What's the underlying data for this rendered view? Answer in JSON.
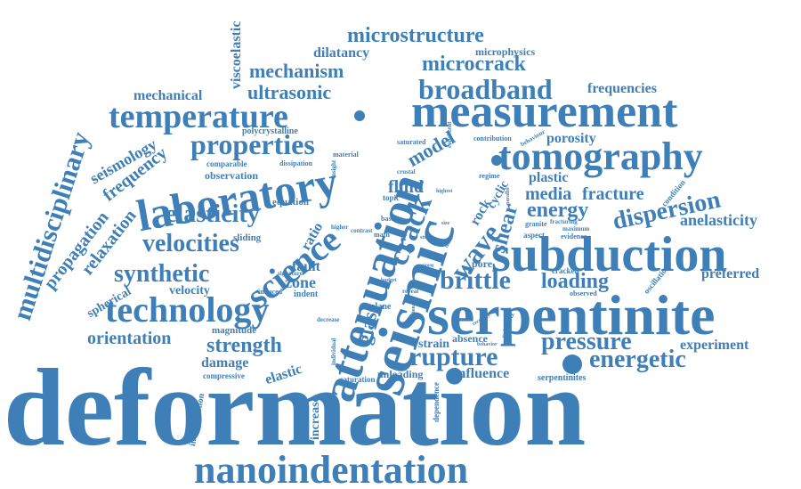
{
  "cloud": {
    "color": "#3f7fb8",
    "words": {
      "deformation": "deformation",
      "nanoindentation": "nanoindentation",
      "serpentinite": "serpentinite",
      "subduction": "subduction",
      "measurement": "measurement",
      "seismic": "seismic",
      "attenuation": "attenuation",
      "laboratory": "laboratory",
      "temperature": "temperature",
      "tomography": "tomography",
      "technology": "technology",
      "broadband": "broadband",
      "science": "science",
      "properties": "properties",
      "microstructure": "microstructure",
      "ultrasonic": "ultrasonic",
      "mechanism": "mechanism",
      "microcrack": "microcrack",
      "elasticity": "elasticity",
      "velocities": "velocities",
      "dispersion": "dispersion",
      "synthetic": "synthetic",
      "pressure": "pressure",
      "rupture": "rupture",
      "brittle": "brittle",
      "energetic": "energetic",
      "loading": "loading",
      "strength": "strength",
      "orientation": "orientation",
      "crack": "crack",
      "wave": "wave",
      "shear": "shear",
      "glass": "glass",
      "energy": "energy",
      "media": "media",
      "fracture": "fracture",
      "model": "model",
      "fluid": "fluid",
      "frequency": "frequency",
      "seismology": "seismology",
      "mechanical": "mechanical",
      "viscoelastic": "viscoelastic",
      "multidisciplinary": "multidisciplinary",
      "propagation": "propagation",
      "relaxation": "relaxation",
      "frequencies": "frequencies",
      "anelasticity": "anelasticity",
      "preferred": "preferred",
      "experiment": "experiment",
      "influence": "influence",
      "damage": "damage",
      "velocity": "velocity",
      "zone": "zone",
      "fault": "fault",
      "dilatancy": "dilatancy",
      "microphysics": "microphysics",
      "porosity": "porosity",
      "plastic": "plastic",
      "spherical": "spherical",
      "elastic": "elastic",
      "strain": "strain",
      "absence": "absence",
      "increase": "increase",
      "cyclic": "cyclic",
      "rock": "rock",
      "observation": "observation",
      "polycrystalline": "polycrystalline",
      "comparable": "comparable",
      "equation": "equation",
      "sliding": "sliding",
      "ratio": "ratio",
      "magnitude": "magnitude",
      "compressive": "compressive",
      "interpretation": "interpretation",
      "unloading": "unloading",
      "saturation": "saturation",
      "dependence": "dependence",
      "pore": "pore",
      "serpentinites": "serpentinites",
      "cracked": "cracked",
      "observed": "observed",
      "oscillation": "oscillation",
      "condition": "condition",
      "aspect": "aspect",
      "evidence": "evidence",
      "granite": "granite",
      "fracturing": "fracturing",
      "maximum": "maximum",
      "saturated": "saturated",
      "consistent": "consistent",
      "contribution": "contribution",
      "behaviour": "behaviour",
      "regime": "regime",
      "crustal": "crustal",
      "topic": "topic",
      "basal": "basal",
      "induced": "induced",
      "indent": "indent",
      "plane": "plane",
      "subhertz": "subhertz",
      "dissipation": "dissipation",
      "material": "material",
      "insight": "insight",
      "higher": "higher",
      "contrast": "contrast",
      "math": "math",
      "signature": "signature",
      "decrease": "decrease",
      "individual": "individual",
      "reveal": "reveal",
      "budget": "budget",
      "frictional": "frictional",
      "recovery": "recovery",
      "behavior": "behavior",
      "data": "data",
      "study": "study",
      "size": "size",
      "parallel": "parallel",
      "highest": "highest",
      "strong": "strong"
    }
  }
}
